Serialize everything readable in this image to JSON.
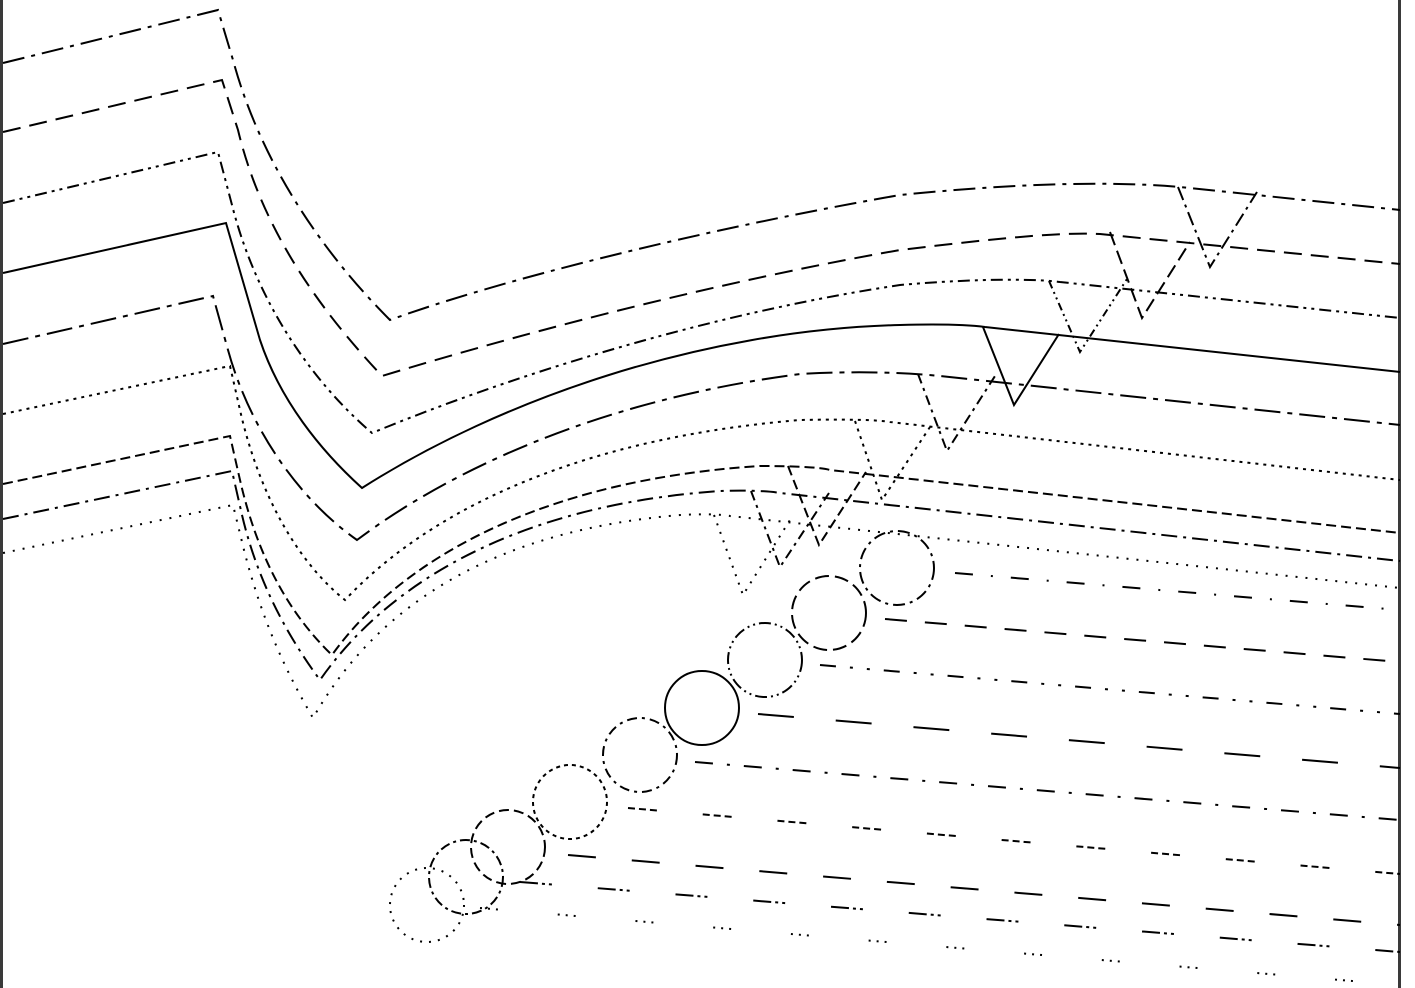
{
  "diagram": {
    "title": "",
    "ink_color": "#000000",
    "frame_color": "#3a3a3a",
    "background": "#ffffff",
    "line_styles": [
      "dashdot",
      "dashed",
      "dashdot",
      "solid",
      "longdashdot",
      "dotted",
      "dashed",
      "dashdot",
      "dotted"
    ],
    "marker_styles": [
      "dashdot",
      "longdashed",
      "dashdotdot",
      "solid",
      "dashdot",
      "dashdashdot",
      "longdashed",
      "dashdashdot",
      "dotted"
    ],
    "marker_counts": {
      "polylines": 9,
      "v_markers": 9,
      "circles": 9,
      "trailing_lines": 9
    }
  }
}
